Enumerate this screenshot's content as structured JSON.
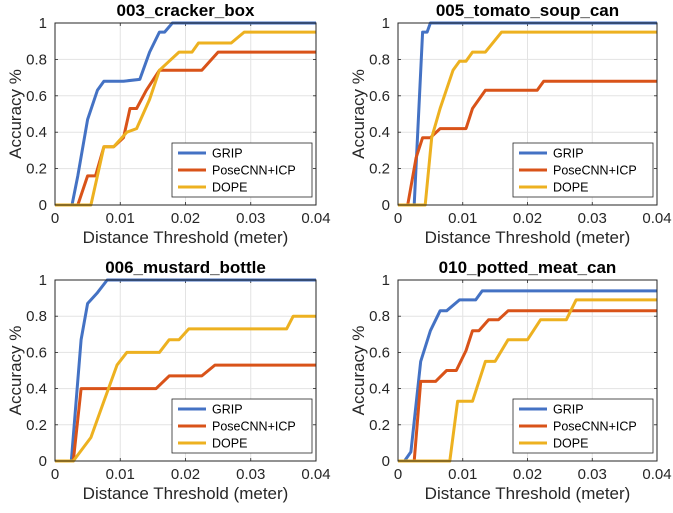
{
  "chart_data": [
    {
      "type": "line",
      "title": "003_cracker_box",
      "xlabel": "Distance Threshold (meter)",
      "ylabel": "Accuracy %",
      "xlim": [
        0,
        0.04
      ],
      "ylim": [
        0,
        1
      ],
      "xticks": [
        0,
        0.01,
        0.02,
        0.03,
        0.04
      ],
      "xtick_labels": [
        "0",
        "0.01",
        "0.02",
        "0.03",
        "0.04"
      ],
      "yticks": [
        0,
        0.2,
        0.4,
        0.6,
        0.8,
        1
      ],
      "ytick_labels": [
        "0",
        "0.2",
        "0.4",
        "0.6",
        "0.8",
        "1"
      ],
      "grid": true,
      "legend_position": "bottom-right",
      "series": [
        {
          "name": "GRIP",
          "color": "#4472c4",
          "points": [
            [
              0,
              0
            ],
            [
              0.0026,
              0
            ],
            [
              0.0035,
              0.16
            ],
            [
              0.005,
              0.47
            ],
            [
              0.0065,
              0.63
            ],
            [
              0.0075,
              0.68
            ],
            [
              0.0105,
              0.68
            ],
            [
              0.013,
              0.69
            ],
            [
              0.0145,
              0.84
            ],
            [
              0.016,
              0.95
            ],
            [
              0.0168,
              0.95
            ],
            [
              0.018,
              1
            ],
            [
              0.04,
              1
            ]
          ]
        },
        {
          "name": "PoseCNN+ICP",
          "color": "#d95319",
          "points": [
            [
              0,
              0
            ],
            [
              0.0035,
              0
            ],
            [
              0.005,
              0.16
            ],
            [
              0.0062,
              0.16
            ],
            [
              0.0075,
              0.32
            ],
            [
              0.009,
              0.32
            ],
            [
              0.0105,
              0.37
            ],
            [
              0.0115,
              0.53
            ],
            [
              0.0125,
              0.53
            ],
            [
              0.014,
              0.63
            ],
            [
              0.016,
              0.74
            ],
            [
              0.0225,
              0.74
            ],
            [
              0.025,
              0.84
            ],
            [
              0.04,
              0.84
            ]
          ]
        },
        {
          "name": "DOPE",
          "color": "#edb120",
          "points": [
            [
              0,
              0
            ],
            [
              0.0055,
              0
            ],
            [
              0.0075,
              0.32
            ],
            [
              0.009,
              0.32
            ],
            [
              0.011,
              0.4
            ],
            [
              0.0125,
              0.42
            ],
            [
              0.0145,
              0.58
            ],
            [
              0.016,
              0.74
            ],
            [
              0.0175,
              0.79
            ],
            [
              0.019,
              0.84
            ],
            [
              0.021,
              0.84
            ],
            [
              0.022,
              0.89
            ],
            [
              0.027,
              0.89
            ],
            [
              0.029,
              0.95
            ],
            [
              0.04,
              0.95
            ]
          ]
        }
      ]
    },
    {
      "type": "line",
      "title": "005_tomato_soup_can",
      "xlabel": "Distance Threshold (meter)",
      "ylabel": "Accuracy %",
      "xlim": [
        0,
        0.04
      ],
      "ylim": [
        0,
        1
      ],
      "xticks": [
        0,
        0.01,
        0.02,
        0.03,
        0.04
      ],
      "xtick_labels": [
        "0",
        "0.01",
        "0.02",
        "0.03",
        "0.04"
      ],
      "yticks": [
        0,
        0.2,
        0.4,
        0.6,
        0.8,
        1
      ],
      "ytick_labels": [
        "0",
        "0.2",
        "0.4",
        "0.6",
        "0.8",
        "1"
      ],
      "grid": true,
      "legend_position": "bottom-right",
      "series": [
        {
          "name": "GRIP",
          "color": "#4472c4",
          "points": [
            [
              0,
              0
            ],
            [
              0.0025,
              0
            ],
            [
              0.0038,
              0.95
            ],
            [
              0.0045,
              0.95
            ],
            [
              0.005,
              1
            ],
            [
              0.04,
              1
            ]
          ]
        },
        {
          "name": "PoseCNN+ICP",
          "color": "#d95319",
          "points": [
            [
              0,
              0
            ],
            [
              0.0015,
              0
            ],
            [
              0.0028,
              0.26
            ],
            [
              0.0038,
              0.37
            ],
            [
              0.005,
              0.37
            ],
            [
              0.0065,
              0.42
            ],
            [
              0.0105,
              0.42
            ],
            [
              0.0115,
              0.53
            ],
            [
              0.0135,
              0.63
            ],
            [
              0.0215,
              0.63
            ],
            [
              0.0225,
              0.68
            ],
            [
              0.04,
              0.68
            ]
          ]
        },
        {
          "name": "DOPE",
          "color": "#edb120",
          "points": [
            [
              0,
              0
            ],
            [
              0.0042,
              0
            ],
            [
              0.0052,
              0.37
            ],
            [
              0.0065,
              0.53
            ],
            [
              0.0085,
              0.74
            ],
            [
              0.0095,
              0.79
            ],
            [
              0.0105,
              0.79
            ],
            [
              0.0115,
              0.84
            ],
            [
              0.0135,
              0.84
            ],
            [
              0.016,
              0.95
            ],
            [
              0.04,
              0.95
            ]
          ]
        }
      ]
    },
    {
      "type": "line",
      "title": "006_mustard_bottle",
      "xlabel": "Distance Threshold (meter)",
      "ylabel": "Accuracy %",
      "xlim": [
        0,
        0.04
      ],
      "ylim": [
        0,
        1
      ],
      "xticks": [
        0,
        0.01,
        0.02,
        0.03,
        0.04
      ],
      "xtick_labels": [
        "0",
        "0.01",
        "0.02",
        "0.03",
        "0.04"
      ],
      "yticks": [
        0,
        0.2,
        0.4,
        0.6,
        0.8,
        1
      ],
      "ytick_labels": [
        "0",
        "0.2",
        "0.4",
        "0.6",
        "0.8",
        "1"
      ],
      "grid": true,
      "legend_position": "bottom-right",
      "series": [
        {
          "name": "GRIP",
          "color": "#4472c4",
          "points": [
            [
              0,
              0
            ],
            [
              0.0025,
              0
            ],
            [
              0.004,
              0.67
            ],
            [
              0.005,
              0.87
            ],
            [
              0.0065,
              0.93
            ],
            [
              0.008,
              1
            ],
            [
              0.04,
              1
            ]
          ]
        },
        {
          "name": "PoseCNN+ICP",
          "color": "#d95319",
          "points": [
            [
              0,
              0
            ],
            [
              0.0028,
              0
            ],
            [
              0.004,
              0.4
            ],
            [
              0.0155,
              0.4
            ],
            [
              0.0175,
              0.47
            ],
            [
              0.0225,
              0.47
            ],
            [
              0.0245,
              0.53
            ],
            [
              0.04,
              0.53
            ]
          ]
        },
        {
          "name": "DOPE",
          "color": "#edb120",
          "points": [
            [
              0,
              0
            ],
            [
              0.0028,
              0
            ],
            [
              0.0055,
              0.13
            ],
            [
              0.0075,
              0.33
            ],
            [
              0.0095,
              0.53
            ],
            [
              0.011,
              0.6
            ],
            [
              0.016,
              0.6
            ],
            [
              0.0175,
              0.67
            ],
            [
              0.019,
              0.67
            ],
            [
              0.0205,
              0.73
            ],
            [
              0.0355,
              0.73
            ],
            [
              0.0365,
              0.8
            ],
            [
              0.04,
              0.8
            ]
          ]
        }
      ]
    },
    {
      "type": "line",
      "title": "010_potted_meat_can",
      "xlabel": "Distance Threshold (meter)",
      "ylabel": "Accuracy %",
      "xlim": [
        0,
        0.04
      ],
      "ylim": [
        0,
        1
      ],
      "xticks": [
        0,
        0.01,
        0.02,
        0.03,
        0.04
      ],
      "xtick_labels": [
        "0",
        "0.01",
        "0.02",
        "0.03",
        "0.04"
      ],
      "yticks": [
        0,
        0.2,
        0.4,
        0.6,
        0.8,
        1
      ],
      "ytick_labels": [
        "0",
        "0.2",
        "0.4",
        "0.6",
        "0.8",
        "1"
      ],
      "grid": true,
      "legend_position": "bottom-right",
      "series": [
        {
          "name": "GRIP",
          "color": "#4472c4",
          "points": [
            [
              0,
              0
            ],
            [
              0.001,
              0
            ],
            [
              0.002,
              0.05
            ],
            [
              0.0035,
              0.55
            ],
            [
              0.005,
              0.72
            ],
            [
              0.0065,
              0.83
            ],
            [
              0.0075,
              0.83
            ],
            [
              0.0095,
              0.89
            ],
            [
              0.012,
              0.89
            ],
            [
              0.013,
              0.94
            ],
            [
              0.04,
              0.94
            ]
          ]
        },
        {
          "name": "PoseCNN+ICP",
          "color": "#d95319",
          "points": [
            [
              0,
              0
            ],
            [
              0.0025,
              0
            ],
            [
              0.0035,
              0.44
            ],
            [
              0.0058,
              0.44
            ],
            [
              0.0075,
              0.5
            ],
            [
              0.009,
              0.5
            ],
            [
              0.0105,
              0.61
            ],
            [
              0.0115,
              0.72
            ],
            [
              0.0125,
              0.72
            ],
            [
              0.014,
              0.78
            ],
            [
              0.0155,
              0.78
            ],
            [
              0.017,
              0.83
            ],
            [
              0.04,
              0.83
            ]
          ]
        },
        {
          "name": "DOPE",
          "color": "#edb120",
          "points": [
            [
              0,
              0
            ],
            [
              0.008,
              0
            ],
            [
              0.0092,
              0.33
            ],
            [
              0.0115,
              0.33
            ],
            [
              0.0135,
              0.55
            ],
            [
              0.015,
              0.55
            ],
            [
              0.017,
              0.67
            ],
            [
              0.02,
              0.67
            ],
            [
              0.022,
              0.78
            ],
            [
              0.026,
              0.78
            ],
            [
              0.0275,
              0.89
            ],
            [
              0.04,
              0.89
            ]
          ]
        }
      ]
    }
  ]
}
